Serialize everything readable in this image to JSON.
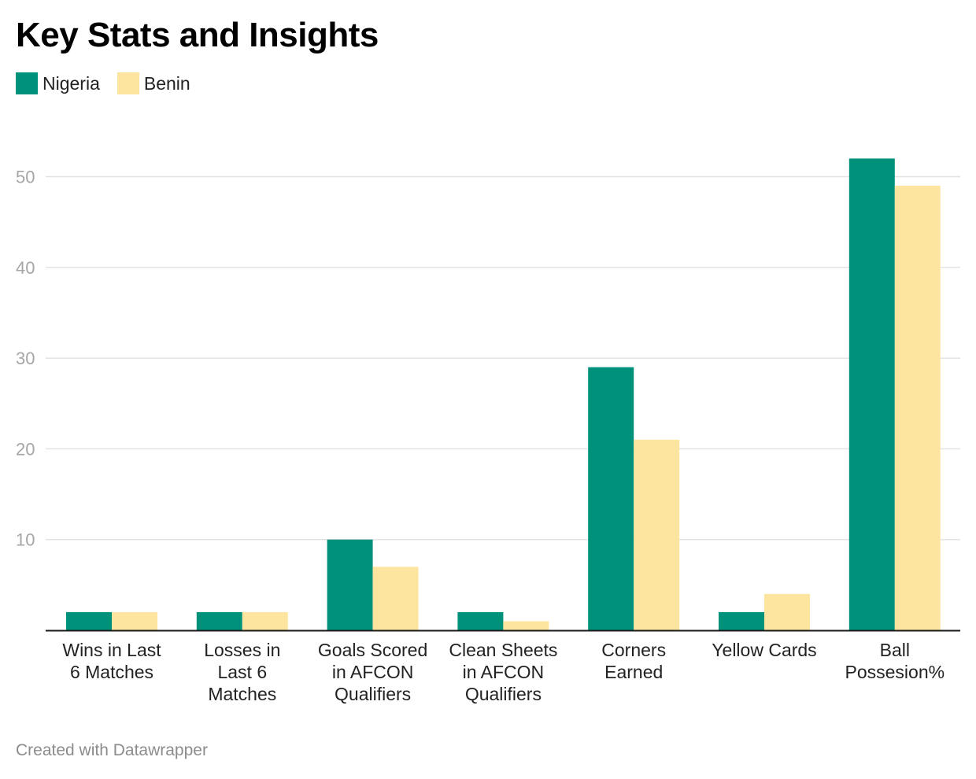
{
  "chart_data": {
    "type": "bar",
    "title": "Key Stats and Insights",
    "categories": [
      [
        "Wins in Last",
        "6 Matches"
      ],
      [
        "Losses in",
        "Last 6",
        "Matches"
      ],
      [
        "Goals Scored",
        "in AFCON",
        "Qualifiers"
      ],
      [
        "Clean Sheets",
        "in AFCON",
        "Qualifiers"
      ],
      [
        "Corners",
        "Earned"
      ],
      [
        "Yellow Cards"
      ],
      [
        "Ball",
        "Possesion%"
      ]
    ],
    "series": [
      {
        "name": "Nigeria",
        "color": "#00917a",
        "values": [
          2,
          2,
          10,
          2,
          29,
          2,
          52
        ]
      },
      {
        "name": "Benin",
        "color": "#fee59f",
        "values": [
          2,
          2,
          7,
          1,
          21,
          4,
          49
        ]
      }
    ],
    "yticks": [
      "10",
      "20",
      "30",
      "40",
      "50"
    ],
    "ylim": [
      0,
      52
    ],
    "grid": true,
    "legend_position": "top-left"
  },
  "footer": {
    "credit": "Created with Datawrapper"
  }
}
